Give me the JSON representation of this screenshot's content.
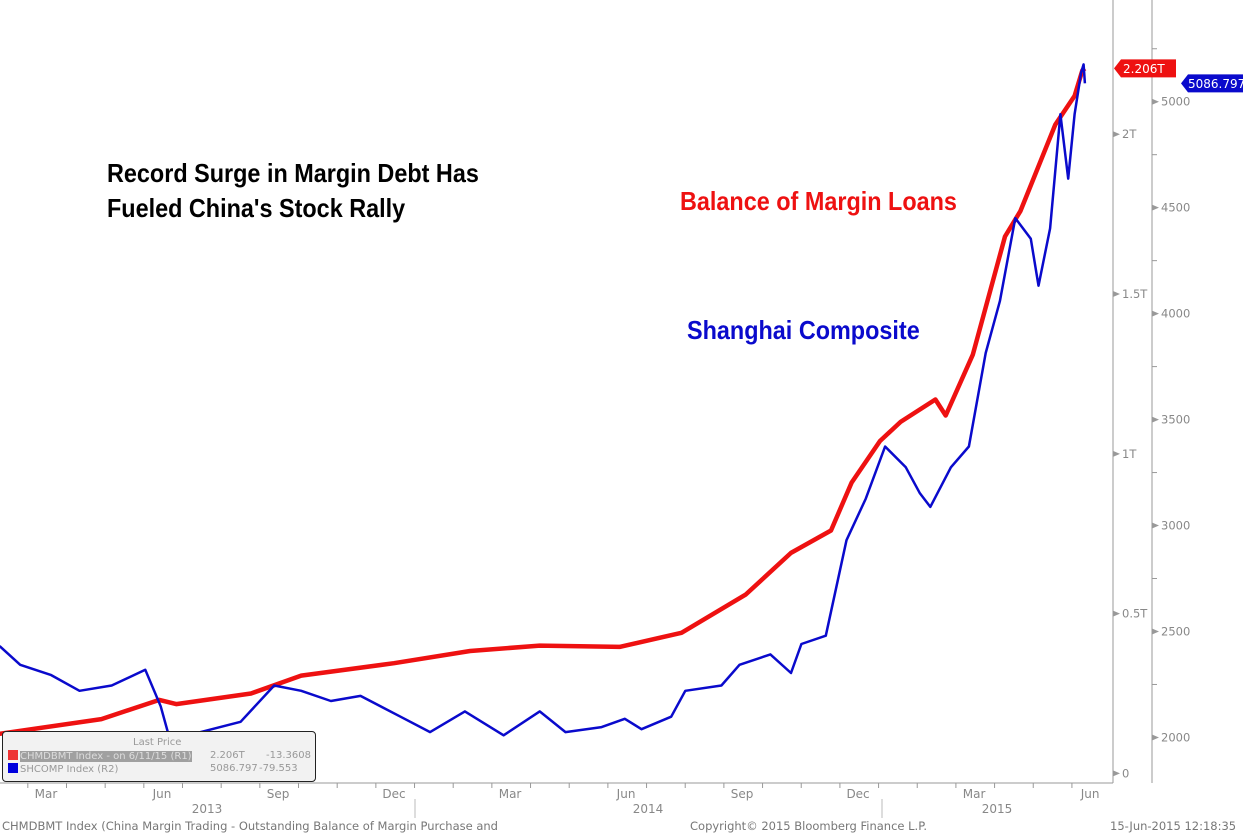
{
  "chart_data": {
    "type": "line",
    "title": "Record Surge in Margin Debt Has Fueled China's Stock Rally",
    "title_lines": [
      "Record Surge in Margin Debt Has",
      "Fueled China's Stock Rally"
    ],
    "x_tick_labels": [
      "Mar",
      "Jun",
      "Sep",
      "Dec",
      "Mar",
      "Jun",
      "Sep",
      "Dec",
      "Mar",
      "Jun"
    ],
    "x_tick_dates": [
      "2013-03",
      "2013-06",
      "2013-09",
      "2013-12",
      "2014-03",
      "2014-06",
      "2014-09",
      "2014-12",
      "2015-03",
      "2015-06"
    ],
    "year_labels": [
      "2013",
      "2014",
      "2015"
    ],
    "xlim": [
      "2013-01-25",
      "2015-06-18"
    ],
    "grid": false,
    "axes": {
      "r1": {
        "ticks": [
          0,
          0.5,
          1,
          1.5,
          2
        ],
        "tick_labels": [
          "0",
          "0.5T",
          "1T",
          "1.5T",
          "2T"
        ],
        "ylim": [
          -0.03,
          2.42
        ]
      },
      "r2": {
        "ticks": [
          2000,
          2500,
          3000,
          3500,
          4000,
          4500,
          5000
        ],
        "tick_labels": [
          "2000",
          "2500",
          "3000",
          "3500",
          "4000",
          "4500",
          "5000"
        ],
        "ylim": [
          1785,
          5480
        ]
      }
    },
    "series": [
      {
        "name": "Balance of Margin Loans",
        "axis": "r1",
        "color": "#ee1111",
        "last_label": "2.206T",
        "points": [
          [
            "2013-02-09",
            0.124
          ],
          [
            "2013-04-28",
            0.17
          ],
          [
            "2013-06-13",
            0.23
          ],
          [
            "2013-06-26",
            0.217
          ],
          [
            "2013-08-24",
            0.25
          ],
          [
            "2013-10-03",
            0.306
          ],
          [
            "2013-12-15",
            0.345
          ],
          [
            "2014-02-14",
            0.383
          ],
          [
            "2014-04-08",
            0.4
          ],
          [
            "2014-06-10",
            0.396
          ],
          [
            "2014-07-28",
            0.44
          ],
          [
            "2014-09-18",
            0.56
          ],
          [
            "2014-10-23",
            0.69
          ],
          [
            "2014-11-24",
            0.76
          ],
          [
            "2014-12-10",
            0.91
          ],
          [
            "2015-01-02",
            1.04
          ],
          [
            "2015-01-18",
            1.1
          ],
          [
            "2015-02-15",
            1.17
          ],
          [
            "2015-02-23",
            1.12
          ],
          [
            "2015-03-14",
            1.31
          ],
          [
            "2015-04-09",
            1.68
          ],
          [
            "2015-04-21",
            1.76
          ],
          [
            "2015-04-29",
            1.84
          ],
          [
            "2015-05-18",
            2.03
          ],
          [
            "2015-06-03",
            2.12
          ],
          [
            "2015-06-09",
            2.2
          ],
          [
            "2015-06-11",
            2.206
          ]
        ]
      },
      {
        "name": "Shanghai Composite",
        "axis": "r2",
        "color": "#0a0acc",
        "last_label": "5086.797",
        "points": [
          [
            "2013-02-09",
            2431
          ],
          [
            "2013-02-25",
            2343
          ],
          [
            "2013-03-19",
            2294
          ],
          [
            "2013-04-11",
            2220
          ],
          [
            "2013-05-06",
            2245
          ],
          [
            "2013-06-02",
            2319
          ],
          [
            "2013-06-14",
            2147
          ],
          [
            "2013-06-22",
            1971
          ],
          [
            "2013-07-15",
            2025
          ],
          [
            "2013-08-16",
            2074
          ],
          [
            "2013-09-12",
            2245
          ],
          [
            "2013-10-03",
            2220
          ],
          [
            "2013-10-26",
            2172
          ],
          [
            "2013-11-19",
            2196
          ],
          [
            "2013-12-20",
            2098
          ],
          [
            "2014-01-13",
            2025
          ],
          [
            "2014-02-10",
            2123
          ],
          [
            "2014-03-10",
            2010
          ],
          [
            "2014-04-08",
            2123
          ],
          [
            "2014-04-28",
            2025
          ],
          [
            "2014-05-26",
            2049
          ],
          [
            "2014-06-14",
            2088
          ],
          [
            "2014-06-27",
            2039
          ],
          [
            "2014-07-20",
            2098
          ],
          [
            "2014-07-31",
            2220
          ],
          [
            "2014-08-29",
            2245
          ],
          [
            "2014-09-13",
            2343
          ],
          [
            "2014-10-07",
            2392
          ],
          [
            "2014-10-23",
            2304
          ],
          [
            "2014-10-31",
            2441
          ],
          [
            "2014-11-20",
            2480
          ],
          [
            "2014-12-06",
            2931
          ],
          [
            "2014-12-21",
            3127
          ],
          [
            "2015-01-06",
            3373
          ],
          [
            "2015-01-22",
            3275
          ],
          [
            "2015-02-03",
            3152
          ],
          [
            "2015-02-11",
            3088
          ],
          [
            "2015-02-27",
            3275
          ],
          [
            "2015-03-11",
            3373
          ],
          [
            "2015-03-24",
            3814
          ],
          [
            "2015-04-05",
            4059
          ],
          [
            "2015-04-17",
            4451
          ],
          [
            "2015-04-29",
            4353
          ],
          [
            "2015-05-05",
            4132
          ],
          [
            "2015-05-14",
            4402
          ],
          [
            "2015-05-22",
            4941
          ],
          [
            "2015-05-28",
            4637
          ],
          [
            "2015-06-03",
            4941
          ],
          [
            "2015-06-08",
            5137
          ],
          [
            "2015-06-10",
            5176
          ],
          [
            "2015-06-11",
            5086.797
          ]
        ]
      }
    ]
  },
  "legend": {
    "header": "Last Price",
    "rows": [
      {
        "label": "CHMDBMT Index -  on 6/11/15  (R1)",
        "value": "2.206T",
        "change": "-13.3608",
        "color": "#ee3333"
      },
      {
        "label": "SHCOMP Index  (R2)",
        "value": "5086.797",
        "change": "-79.553",
        "color": "#0000dd"
      }
    ]
  },
  "footer": {
    "description": "CHMDBMT Index (China Margin Trading - Outstanding Balance of Margin Purchase and",
    "copyright": "Copyright© 2015 Bloomberg Finance L.P.",
    "timestamp": "15-Jun-2015 12:18:35"
  }
}
